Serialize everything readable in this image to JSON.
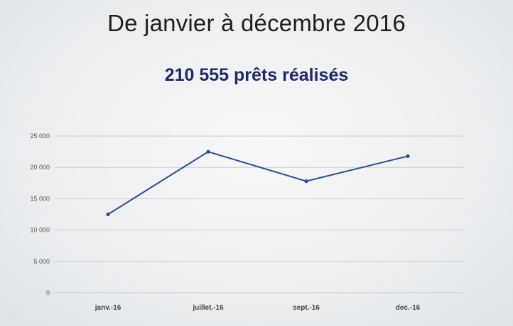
{
  "slide": {
    "title": "De janvier à décembre 2016",
    "subtitle": "210 555 prêts réalisés"
  },
  "chart_data": {
    "type": "line",
    "categories": [
      "janv.-16",
      "juillet.-16",
      "sept.-16",
      "dec.-16"
    ],
    "series": [
      {
        "values": [
          12500,
          22500,
          17800,
          21800
        ],
        "color": "#2d4f8a"
      }
    ],
    "ylim": [
      0,
      25000
    ],
    "yticks": [
      0,
      5000,
      10000,
      15000,
      20000,
      25000
    ],
    "ytick_labels": [
      "0",
      "5 000",
      "10 000",
      "15 000",
      "20 000",
      "25 000"
    ],
    "grid": true,
    "legend": "none"
  }
}
